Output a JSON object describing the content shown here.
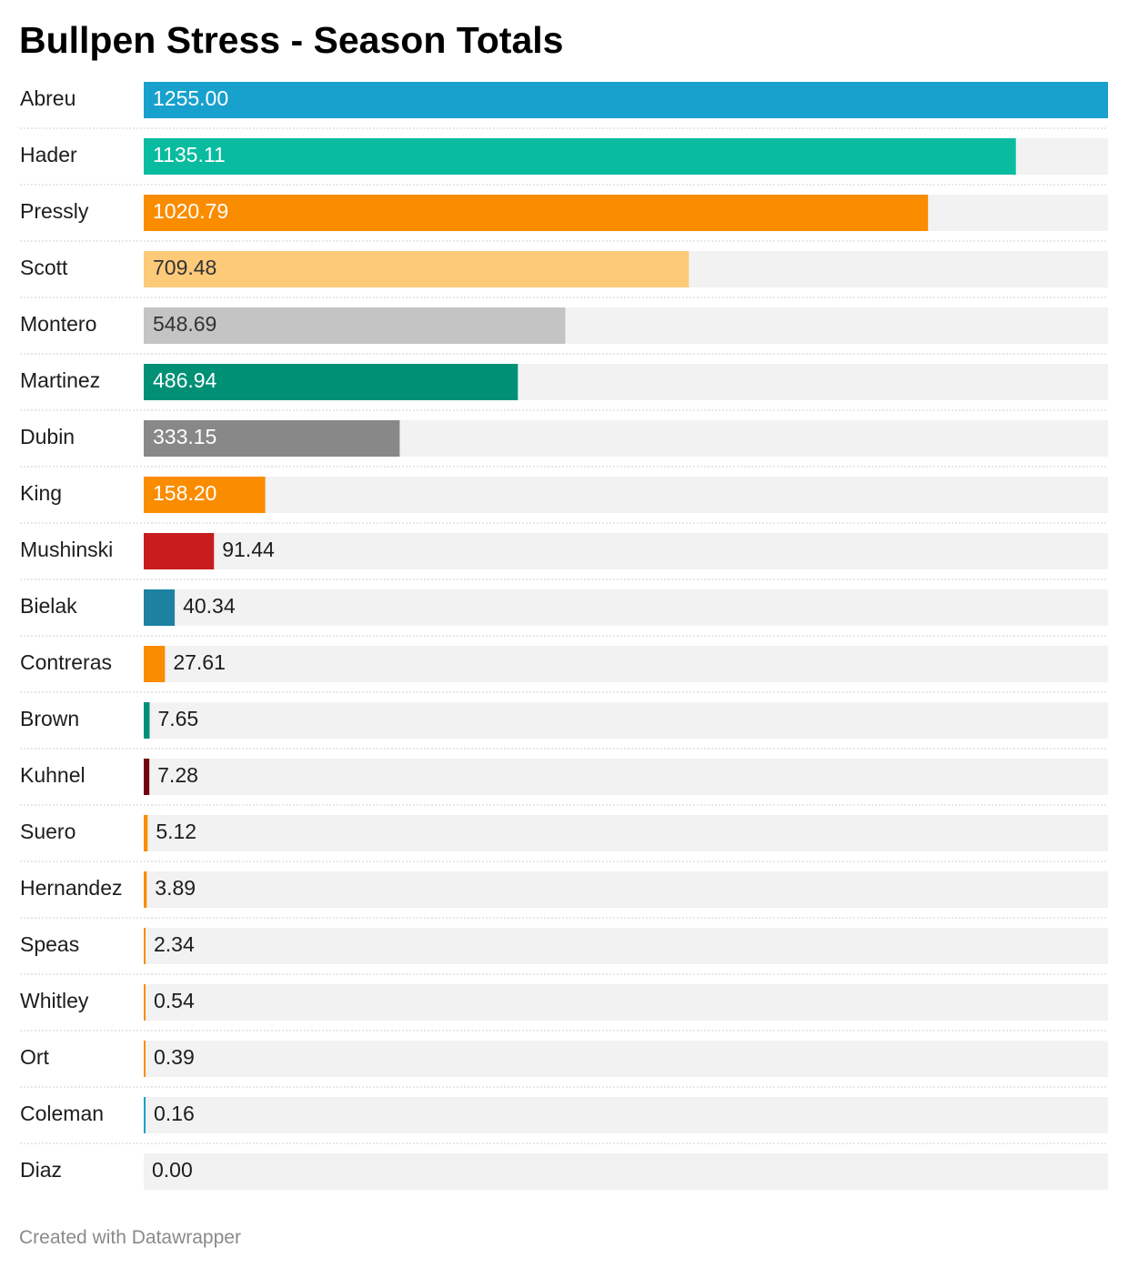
{
  "title": "Bullpen Stress - Season Totals",
  "footer": "Created with Datawrapper",
  "chart_data": {
    "type": "bar",
    "orientation": "horizontal",
    "title": "Bullpen Stress - Season Totals",
    "xlim": [
      0,
      1255
    ],
    "grid": false,
    "value_format": "0.00",
    "track_color": "#f2f2f2",
    "categories": [
      "Abreu",
      "Hader",
      "Pressly",
      "Scott",
      "Montero",
      "Martinez",
      "Dubin",
      "King",
      "Mushinski",
      "Bielak",
      "Contreras",
      "Brown",
      "Kuhnel",
      "Suero",
      "Hernandez",
      "Speas",
      "Whitley",
      "Ort",
      "Coleman",
      "Diaz"
    ],
    "values": [
      1255.0,
      1135.11,
      1020.79,
      709.48,
      548.69,
      486.94,
      333.15,
      158.2,
      91.44,
      40.34,
      27.61,
      7.65,
      7.28,
      5.12,
      3.89,
      2.34,
      0.54,
      0.39,
      0.16,
      0.0
    ],
    "colors": [
      "#18a1cd",
      "#09bb9f",
      "#fa8c00",
      "#fdca79",
      "#c4c4c4",
      "#009076",
      "#888888",
      "#fa8c00",
      "#c71e1d",
      "#1d81a2",
      "#fa8c00",
      "#009076",
      "#74000e",
      "#fa8c00",
      "#fa8c00",
      "#fa8c00",
      "#fa8c00",
      "#fa8c00",
      "#18a1cd",
      "#fa8c00"
    ],
    "label_colors": [
      "#ffffff",
      "#ffffff",
      "#ffffff",
      "#333333",
      "#333333",
      "#ffffff",
      "#ffffff",
      "#ffffff",
      "#1d1d1d",
      "#1d1d1d",
      "#1d1d1d",
      "#1d1d1d",
      "#1d1d1d",
      "#1d1d1d",
      "#1d1d1d",
      "#1d1d1d",
      "#1d1d1d",
      "#1d1d1d",
      "#1d1d1d",
      "#1d1d1d"
    ]
  }
}
